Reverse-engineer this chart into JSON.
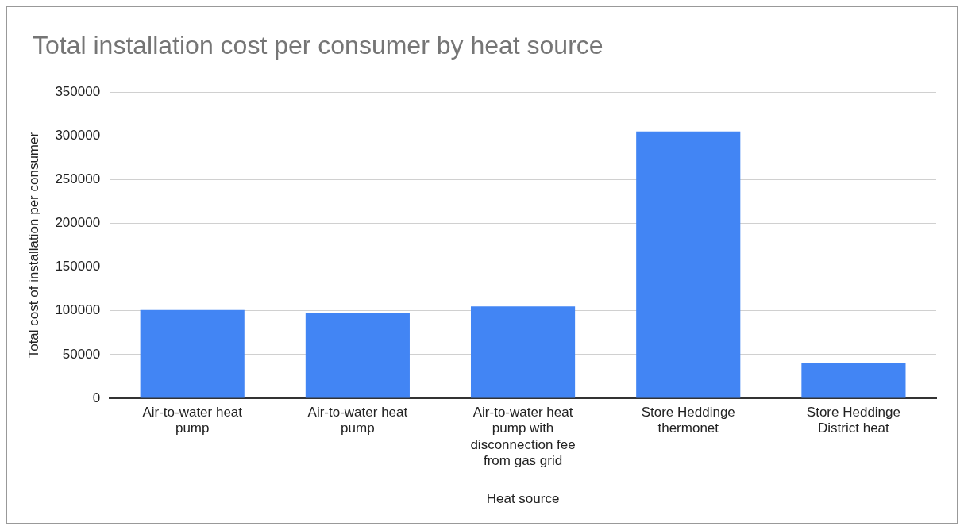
{
  "chart_data": {
    "type": "bar",
    "title": "Total installation cost per consumer by heat source",
    "xlabel": "Heat source",
    "ylabel": "Total cost of installation per consumer",
    "categories": [
      "Air-to-water heat pump",
      "Air-to-water heat pump",
      "Air-to-water heat pump with disconnection fee from gas grid",
      "Store Heddinge thermonet",
      "Store Heddinge District heat"
    ],
    "values": [
      101000,
      98000,
      105000,
      305000,
      40000
    ],
    "color": "#4285f4",
    "ylim": [
      0,
      350000
    ],
    "yticks": [
      0,
      50000,
      100000,
      150000,
      200000,
      250000,
      300000,
      350000
    ],
    "grid": "y",
    "legend": false
  }
}
